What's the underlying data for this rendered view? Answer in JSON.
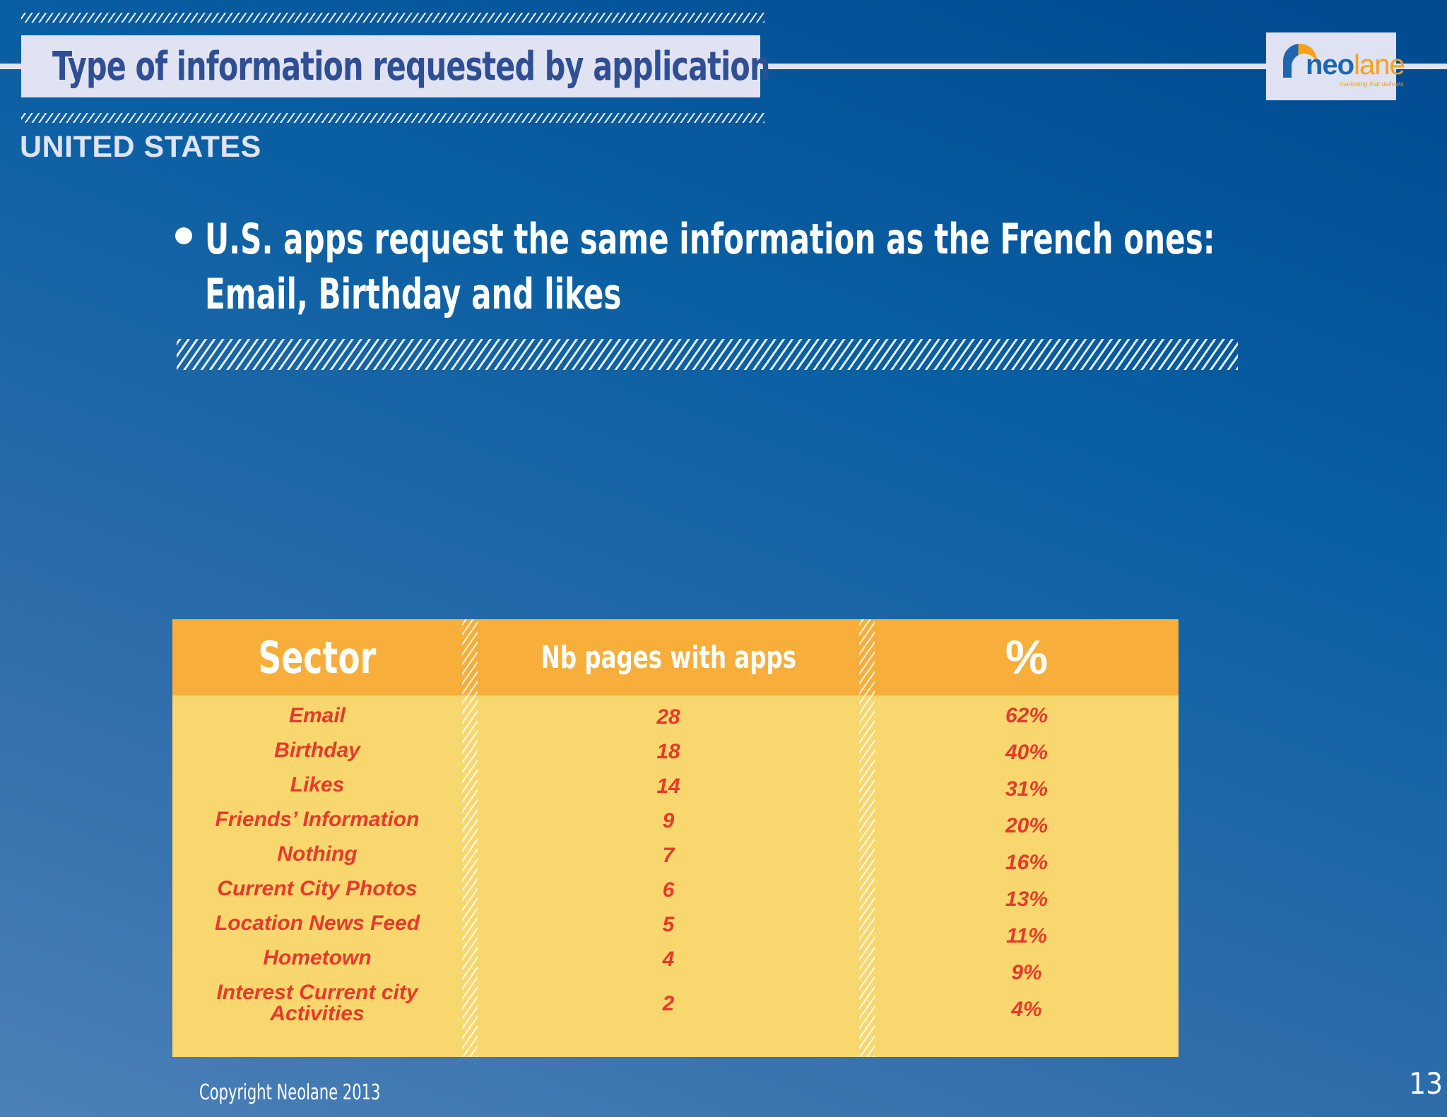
{
  "header": {
    "title": "Type of information requested by application",
    "subtitle": "UNITED STATES",
    "logo": {
      "name": "neo",
      "name_accent": "lane",
      "tagline": "marketing that delivers"
    }
  },
  "bullet": {
    "line1": "U.S. apps request the same information as the French ones:",
    "line2": "Email, Birthday and likes"
  },
  "table": {
    "headers": [
      "Sector",
      "Nb pages with apps",
      "%"
    ],
    "rows": [
      {
        "sector": "Email",
        "nb": "28",
        "pct": "62%"
      },
      {
        "sector": "Birthday",
        "nb": "18",
        "pct": "40%"
      },
      {
        "sector": "Likes",
        "nb": "14",
        "pct": "31%"
      },
      {
        "sector": "Friends’ Information",
        "nb": "9",
        "pct": "20%"
      },
      {
        "sector": "Nothing",
        "nb": "7",
        "pct": "16%"
      },
      {
        "sector": "Current City Photos",
        "nb": "6",
        "pct": "13%"
      },
      {
        "sector": "Location News Feed",
        "nb": "5",
        "pct": "11%"
      },
      {
        "sector": "Hometown",
        "nb": "4",
        "pct": "9%"
      },
      {
        "sector": "Interest Current city",
        "sector2": "Activities",
        "nb": "2",
        "pct": "4%"
      }
    ]
  },
  "footer": {
    "copyright": "Copyright Neolane 2013",
    "page": "13"
  }
}
